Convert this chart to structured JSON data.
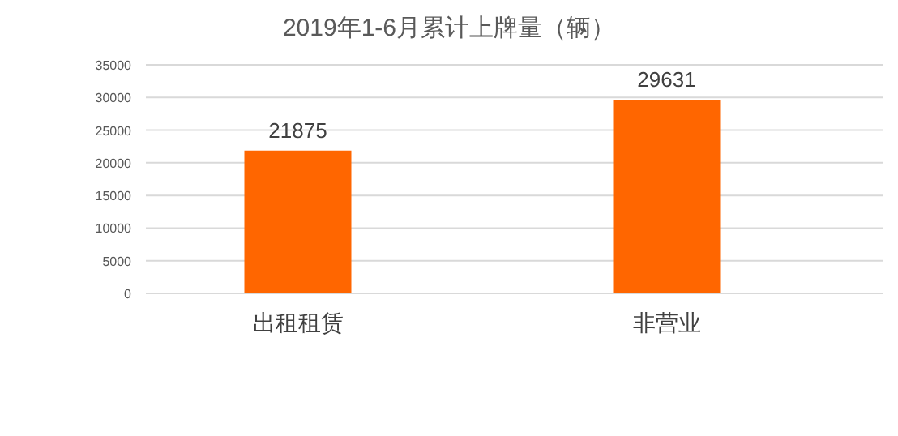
{
  "chart_data": {
    "type": "bar",
    "title": "2019年1-6月累计上牌量（辆）",
    "categories": [
      "出租租赁",
      "非营业"
    ],
    "values": [
      21875,
      29631
    ],
    "color": "#ff6600",
    "ylim": [
      0,
      35000
    ],
    "yticks": [
      0,
      5000,
      10000,
      15000,
      20000,
      25000,
      30000,
      35000
    ],
    "grid": "y",
    "data_labels": true
  }
}
